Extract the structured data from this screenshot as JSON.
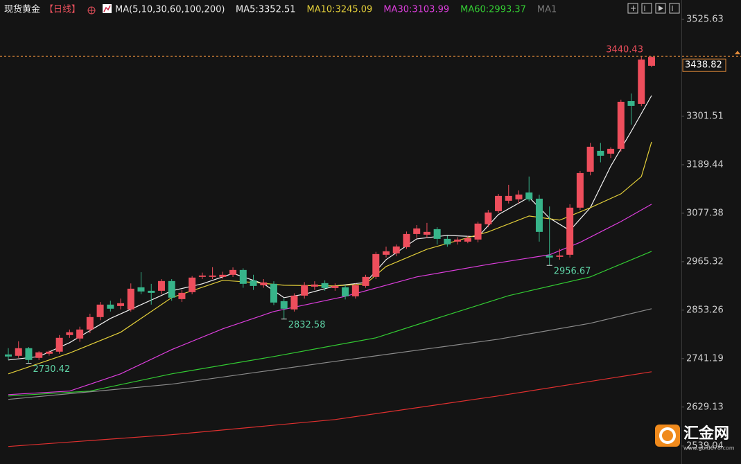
{
  "chart_data": {
    "type": "candlestick",
    "title": "现货黄金",
    "period": "【日线】",
    "ma_header": "MA(5,10,30,60,100,200)",
    "ma_extra": "MA1",
    "up_color": "#ee4e5c",
    "down_color": "#37b48a",
    "ylim": [
      2539.04,
      3525.63
    ],
    "yticks": [
      3525.63,
      3301.51,
      3189.44,
      3077.38,
      2965.32,
      2853.26,
      2741.19,
      2629.13,
      2539.04
    ],
    "open": [
      2750.8,
      2747.6,
      2765.2,
      2742.8,
      2752.4,
      2757.2,
      2795.6,
      2787.6,
      2808.4,
      2837.2,
      2866.0,
      2862.8,
      2854.9,
      2906.0,
      2898.0,
      2898.0,
      2920.5,
      2878.8,
      2894.8,
      2930.1,
      2930.1,
      2930.1,
      2934.9,
      2946.1,
      2922.1,
      2910.8,
      2914.1,
      2874.0,
      2854.9,
      2886.8,
      2907.6,
      2915.7,
      2904.4,
      2906.0,
      2885.2,
      2909.2,
      2930.1,
      2981.3,
      2984.5,
      2998.9,
      3029.3,
      3027.7,
      3040.5,
      3018.1,
      3011.7,
      3011.7,
      3016.5,
      3051.8,
      3082.2,
      3106.2,
      3109.4,
      3125.4,
      3111.0,
      2979.7,
      2976.5,
      2981.3,
      3090.2,
      3173.4,
      3221.5,
      3215.1,
      3226.3,
      3336.7,
      3330.3,
      3418.4
    ],
    "high": [
      2765.2,
      2781.2,
      2768.0,
      2758.0,
      2760.0,
      2795.6,
      2808.4,
      2815.0,
      2845.0,
      2872.0,
      2875.0,
      2880.0,
      2915.0,
      2941.0,
      2914.0,
      2925.0,
      2925.0,
      2900.0,
      2932.0,
      2940.0,
      2952.5,
      2942.0,
      2952.0,
      2950.0,
      2935.0,
      2925.0,
      2920.0,
      2880.0,
      2892.0,
      2918.0,
      2920.0,
      2922.0,
      2915.0,
      2912.0,
      2915.0,
      2935.0,
      2988.0,
      3000.0,
      3005.0,
      3035.0,
      3050.0,
      3055.0,
      3045.0,
      3025.0,
      3022.0,
      3025.0,
      3058.0,
      3085.0,
      3122.0,
      3143.0,
      3130.0,
      3162.2,
      3120.0,
      3093.0,
      2995.0,
      3098.0,
      3175.0,
      3240.0,
      3240.0,
      3230.0,
      3340.0,
      3354.3,
      3440.0,
      3440.43
    ],
    "low": [
      2738.0,
      2742.8,
      2730.42,
      2738.0,
      2748.0,
      2752.4,
      2789.2,
      2780.0,
      2800.0,
      2830.0,
      2850.0,
      2855.0,
      2850.0,
      2890.0,
      2866.0,
      2890.0,
      2875.0,
      2872.0,
      2890.0,
      2925.0,
      2925.0,
      2926.0,
      2930.0,
      2905.0,
      2900.0,
      2905.0,
      2865.0,
      2832.58,
      2850.0,
      2880.0,
      2900.0,
      2898.0,
      2898.0,
      2878.0,
      2880.0,
      2905.0,
      2925.0,
      2975.0,
      2978.0,
      2995.0,
      3020.0,
      3020.0,
      3005.0,
      3000.0,
      3005.0,
      3008.0,
      3010.0,
      3045.0,
      3078.0,
      3100.0,
      3100.0,
      3105.0,
      3011.7,
      2956.67,
      2970.0,
      2975.0,
      3085.0,
      3165.0,
      3195.0,
      3205.0,
      3220.0,
      3282.3,
      3325.0,
      3415.0
    ],
    "close": [
      2746.0,
      2765.2,
      2738.0,
      2755.6,
      2757.2,
      2789.2,
      2802.1,
      2808.4,
      2837.2,
      2866.0,
      2856.5,
      2869.2,
      2902.8,
      2896.4,
      2893.2,
      2920.5,
      2882.1,
      2893.2,
      2928.5,
      2933.3,
      2933.3,
      2934.9,
      2946.1,
      2914.1,
      2909.2,
      2917.3,
      2870.8,
      2856.5,
      2886.8,
      2910.8,
      2912.5,
      2904.4,
      2909.2,
      2885.2,
      2910.8,
      2930.1,
      2982.9,
      2989.3,
      3000.5,
      3029.3,
      3042.2,
      3034.2,
      3018.1,
      3005.3,
      3016.5,
      3019.7,
      3053.4,
      3079.0,
      3117.4,
      3117.4,
      3120.6,
      3109.4,
      3034.2,
      2974.9,
      2979.7,
      3090.2,
      3170.2,
      3231.1,
      3210.3,
      3226.3,
      3335.1,
      3325.6,
      3432.8,
      3438.82
    ],
    "annotated_lows": [
      2,
      27,
      53
    ],
    "annotated_high": 63,
    "lines": [
      {
        "label": "MA5:3352.51",
        "color": "#f2f2f2",
        "x": [
          0,
          3,
          6,
          10,
          13,
          16,
          19,
          22,
          25,
          27,
          29,
          32,
          35,
          37,
          40,
          43,
          46,
          48,
          51,
          53,
          55,
          57,
          59,
          61,
          63
        ],
        "values": [
          2738.0,
          2746.0,
          2778.0,
          2834.0,
          2866.0,
          2898.0,
          2914.1,
          2938.1,
          2914.1,
          2882.1,
          2890.1,
          2909.2,
          2917.3,
          2970.1,
          3018.1,
          3026.1,
          3022.9,
          3074.2,
          3114.2,
          3066.2,
          3037.4,
          3090.2,
          3186.3,
          3266.3,
          3349.5
        ]
      },
      {
        "label": "MA10:3245.09",
        "color": "#e3cf3a",
        "x": [
          0,
          6,
          11,
          16,
          21,
          24,
          27,
          32,
          35,
          37,
          41,
          47,
          51,
          54,
          57,
          60,
          62,
          63
        ],
        "values": [
          2706.0,
          2754.0,
          2802.1,
          2882.1,
          2922.1,
          2917.3,
          2910.8,
          2909.2,
          2914.1,
          2954.1,
          2994.1,
          3034.2,
          3071.0,
          3061.4,
          3090.2,
          3122.2,
          3162.2,
          3242.3
        ]
      },
      {
        "label": "MA30:3103.99",
        "color": "#de3ede",
        "x": [
          0,
          6,
          11,
          16,
          21,
          26,
          33,
          40,
          47,
          53,
          56,
          60,
          63
        ],
        "values": [
          2657.9,
          2666.0,
          2706.0,
          2762.0,
          2810.0,
          2850.0,
          2885.2,
          2930.1,
          2959.0,
          2981.3,
          3010.1,
          3058.2,
          3098.2
        ]
      },
      {
        "label": "MA60:2993.37",
        "color": "#33cc33",
        "x": [
          0,
          8,
          16,
          26,
          36,
          43,
          49,
          57,
          63
        ],
        "values": [
          2654.7,
          2666.0,
          2706.0,
          2746.0,
          2789.2,
          2842.1,
          2886.8,
          2930.1,
          2989.3
        ]
      },
      {
        "color": "#8c8c8c",
        "x": [
          0,
          16,
          32,
          48,
          57,
          63
        ],
        "values": [
          2646.8,
          2682.0,
          2734.8,
          2786.0,
          2822.8,
          2856.5
        ]
      },
      {
        "color": "#e0302f",
        "x": [
          0,
          16,
          32,
          48,
          63
        ],
        "values": [
          2537.9,
          2565.1,
          2600.3,
          2654.9,
          2710.8
        ]
      }
    ]
  },
  "watermark": {
    "name": "汇金网",
    "site": "www.gold678.com"
  }
}
